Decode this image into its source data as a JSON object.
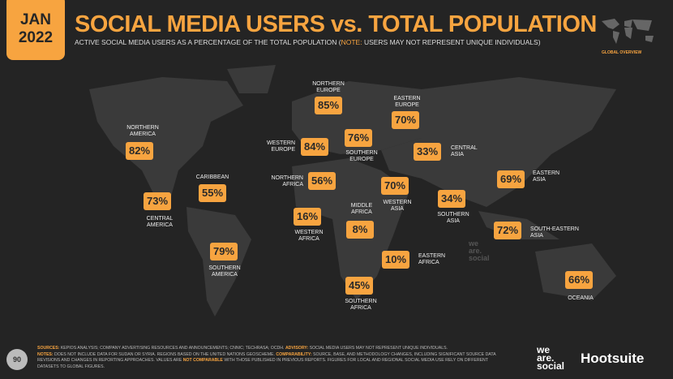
{
  "header": {
    "month": "JAN",
    "year": "2022",
    "title": "SOCIAL MEDIA USERS vs. TOTAL POPULATION",
    "subtitle_pre": "ACTIVE SOCIAL MEDIA USERS AS A PERCENTAGE OF THE TOTAL POPULATION (",
    "subtitle_note": "NOTE:",
    "subtitle_post": " USERS MAY NOT REPRESENT UNIQUE INDIVIDUALS)",
    "section": "GLOBAL OVERVIEW"
  },
  "regions": [
    {
      "name": "NORTHERN\nAMERICA",
      "value": "82%"
    },
    {
      "name": "CARIBBEAN",
      "value": "55%"
    },
    {
      "name": "CENTRAL\nAMERICA",
      "value": "73%"
    },
    {
      "name": "SOUTHERN\nAMERICA",
      "value": "79%"
    },
    {
      "name": "NORTHERN\nEUROPE",
      "value": "85%"
    },
    {
      "name": "WESTERN\nEUROPE",
      "value": "84%"
    },
    {
      "name": "SOUTHERN\nEUROPE",
      "value": "76%"
    },
    {
      "name": "EASTERN\nEUROPE",
      "value": "70%"
    },
    {
      "name": "NORTHERN\nAFRICA",
      "value": "56%"
    },
    {
      "name": "WESTERN\nAFRICA",
      "value": "16%"
    },
    {
      "name": "MIDDLE\nAFRICA",
      "value": "8%"
    },
    {
      "name": "WESTERN\nASIA",
      "value": "70%"
    },
    {
      "name": "CENTRAL\nASIA",
      "value": "33%"
    },
    {
      "name": "SOUTHERN\nASIA",
      "value": "34%"
    },
    {
      "name": "EASTERN\nASIA",
      "value": "69%"
    },
    {
      "name": "SOUTH-EASTERN\nASIA",
      "value": "72%"
    },
    {
      "name": "EASTERN\nAFRICA",
      "value": "10%"
    },
    {
      "name": "SOUTHERN\nAFRICA",
      "value": "45%"
    },
    {
      "name": "OCEANIA",
      "value": "66%"
    }
  ],
  "footer": {
    "page": "90",
    "sources_label": "SOURCES:",
    "sources": " KEPIOS ANALYSIS; COMPANY ADVERTISING RESOURCES AND ANNOUNCEMENTS; CNNIC; TECHRASA; OCDH. ",
    "advisory_label": "ADVISORY:",
    "advisory": " SOCIAL MEDIA USERS MAY NOT REPRESENT UNIQUE INDIVIDUALS.",
    "notes_label": "NOTES:",
    "notes": " DOES NOT INCLUDE DATA FOR SUDAN OR SYRIA. REGIONS BASED ON THE UNITED NATIONS GEOSCHEME. ",
    "comparability_label": "COMPARABILITY:",
    "comparability": " SOURCE, BASE, AND METHODOLOGY CHANGES, INCLUDING SIGNIFICANT SOURCE DATA REVISIONS AND CHANGES IN REPORTING APPROACHES. VALUES ARE ",
    "not_comparable": "NOT COMPARABLE",
    "comparability_post": " WITH THOSE PUBLISHED IN PREVIOUS REPORTS. FIGURES FOR LOCAL AND REGIONAL SOCIAL MEDIA USE RELY ON DIFFERENT DATASETS TO GLOBAL FIGURES.",
    "brand1": "we\nare.\nsocial",
    "brand2": "Hootsuite",
    "watermark": "we\nare.\nsocial"
  }
}
